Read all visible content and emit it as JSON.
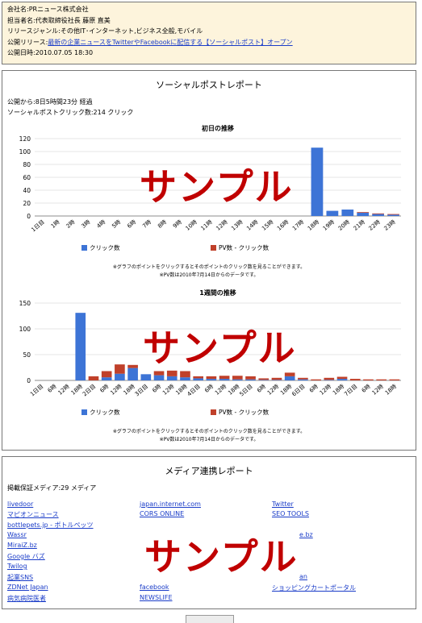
{
  "info": {
    "company": "会社名:PRニュース株式会社",
    "contact": "担当者名:代表取締役社長 藤原 直美",
    "genre": "リリースジャンル:その他IT･インターネット,ビジネス全般,モバイル",
    "release_prefix": "公開リリース:",
    "release_link": "最新の企業ニュースをTwitterやFacebookに配信する【ソーシャルポスト】オープン",
    "published": "公開日時:2010.07.05 18:30"
  },
  "social_report": {
    "title": "ソーシャルポストレポート",
    "elapsed": "公開から:8日5時間23分 経過",
    "clicks": "ソーシャルポストクリック数:214 クリック",
    "note1": "※グラフのポイントをクリックするとそのポイントのクリック数を見ることができます。",
    "note2": "※PV数は2010年7月14日からのデータです。",
    "watermark": "サンプル"
  },
  "chart_data": [
    {
      "type": "bar",
      "title": "初日の推移",
      "categories": [
        "1日目",
        "1時",
        "2時",
        "3時",
        "4時",
        "5時",
        "6時",
        "7時",
        "8時",
        "9時",
        "10時",
        "11時",
        "12時",
        "13時",
        "14時",
        "15時",
        "16時",
        "17時",
        "18時",
        "19時",
        "20時",
        "21時",
        "22時",
        "23時"
      ],
      "ylim": [
        0,
        120
      ],
      "yticks": [
        0,
        20,
        40,
        60,
        80,
        100,
        120
      ],
      "series": [
        {
          "name": "クリック数",
          "color": "#3d74d6",
          "values": [
            0,
            0,
            0,
            0,
            0,
            0,
            0,
            0,
            0,
            0,
            0,
            0,
            0,
            0,
            0,
            0,
            0,
            0,
            106,
            8,
            10,
            5,
            3,
            2
          ]
        },
        {
          "name": "PV数 - クリック数",
          "color": "#c0402a",
          "values": [
            0,
            0,
            0,
            0,
            0,
            0,
            0,
            0,
            0,
            0,
            0,
            0,
            0,
            0,
            0,
            0,
            0,
            0,
            0,
            0,
            0,
            1,
            1,
            1
          ]
        }
      ],
      "legend": "bottom"
    },
    {
      "type": "bar",
      "title": "1週間の推移",
      "categories": [
        "1日目",
        "6時",
        "12時",
        "18時",
        "2日目",
        "6時",
        "12時",
        "18時",
        "3日目",
        "6時",
        "12時",
        "18時",
        "4日目",
        "6時",
        "12時",
        "18時",
        "5日目",
        "6時",
        "12時",
        "18時",
        "6日目",
        "6時",
        "12時",
        "18時",
        "7日目",
        "6時",
        "12時",
        "18時"
      ],
      "ylim": [
        0,
        150
      ],
      "yticks": [
        0,
        50,
        100,
        150
      ],
      "series": [
        {
          "name": "クリック数",
          "color": "#3d74d6",
          "values": [
            0,
            0,
            0,
            131,
            0,
            6,
            13,
            24,
            12,
            10,
            8,
            6,
            4,
            3,
            3,
            2,
            2,
            1,
            1,
            8,
            2,
            0,
            1,
            3,
            0,
            0,
            0,
            0
          ]
        },
        {
          "name": "PV数 - クリック数",
          "color": "#c0402a",
          "values": [
            0,
            0,
            0,
            0,
            8,
            12,
            18,
            6,
            0,
            8,
            11,
            12,
            4,
            5,
            6,
            7,
            6,
            3,
            4,
            7,
            3,
            2,
            4,
            4,
            3,
            2,
            2,
            2
          ]
        }
      ],
      "legend": "bottom"
    }
  ],
  "media_report": {
    "title": "メディア連携レポート",
    "count": "掲載保証メディア:29 メディア",
    "col1": [
      "livedoor",
      "マピオンニュース",
      "bottlepets.jp - ボトルペッツ",
      "Wassr",
      "MiraiZ.bz",
      "Google バズ",
      "Twilog",
      "起業SNS",
      "ZDNet Japan",
      "病気病院医者"
    ],
    "col2": [
      "japan.internet.com",
      "CORS ONLINE",
      "facebook",
      "NEWSLIFE"
    ],
    "col3": [
      "Twitter",
      "SEO TOOLS",
      "e.bz",
      "an",
      "ショッピングカートポータル"
    ],
    "watermark": "サンプル"
  }
}
